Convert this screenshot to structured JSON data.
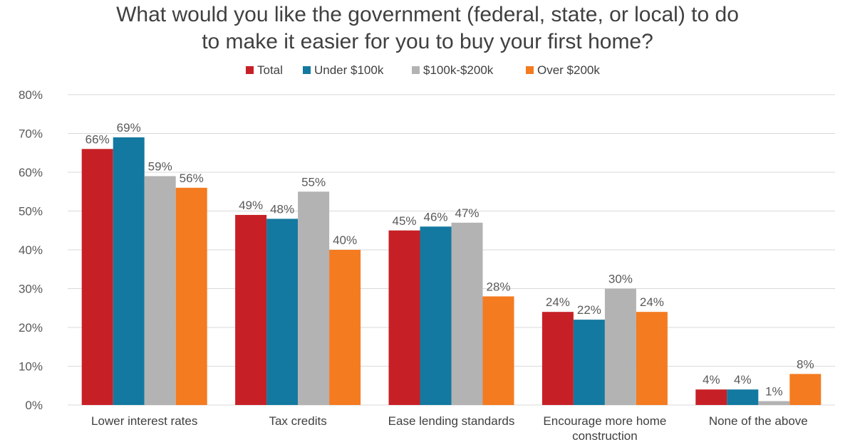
{
  "chart_data": {
    "type": "bar",
    "title_lines": [
      "What would you like the government (federal, state, or local) to do",
      "to make it easier for you to buy your first home?"
    ],
    "categories": [
      [
        "Lower interest rates"
      ],
      [
        "Tax credits"
      ],
      [
        "Ease lending standards"
      ],
      [
        "Encourage more home",
        "construction"
      ],
      [
        "None of the above"
      ]
    ],
    "series": [
      {
        "name": "Total",
        "color": "#C62026",
        "values": [
          66,
          49,
          45,
          24,
          4
        ],
        "labels": [
          "66%",
          "49%",
          "45%",
          "24%",
          "4%"
        ]
      },
      {
        "name": "Under $100k",
        "color": "#1479A0",
        "values": [
          69,
          48,
          46,
          22,
          4
        ],
        "labels": [
          "69%",
          "48%",
          "46%",
          "22%",
          "4%"
        ]
      },
      {
        "name": "$100k-$200k",
        "color": "#B3B3B3",
        "values": [
          59,
          55,
          47,
          30,
          1
        ],
        "labels": [
          "59%",
          "55%",
          "47%",
          "30%",
          "1%"
        ]
      },
      {
        "name": "Over $200k",
        "color": "#F47B20",
        "values": [
          56,
          40,
          28,
          24,
          8
        ],
        "labels": [
          "56%",
          "40%",
          "28%",
          "24%",
          "8%"
        ]
      }
    ],
    "ylim": [
      0,
      80
    ],
    "yticks": [
      "0%",
      "10%",
      "20%",
      "30%",
      "40%",
      "50%",
      "60%",
      "70%",
      "80%"
    ],
    "grid": true,
    "legend_position": "top-center",
    "gridline_color": "#D9D9D9"
  }
}
